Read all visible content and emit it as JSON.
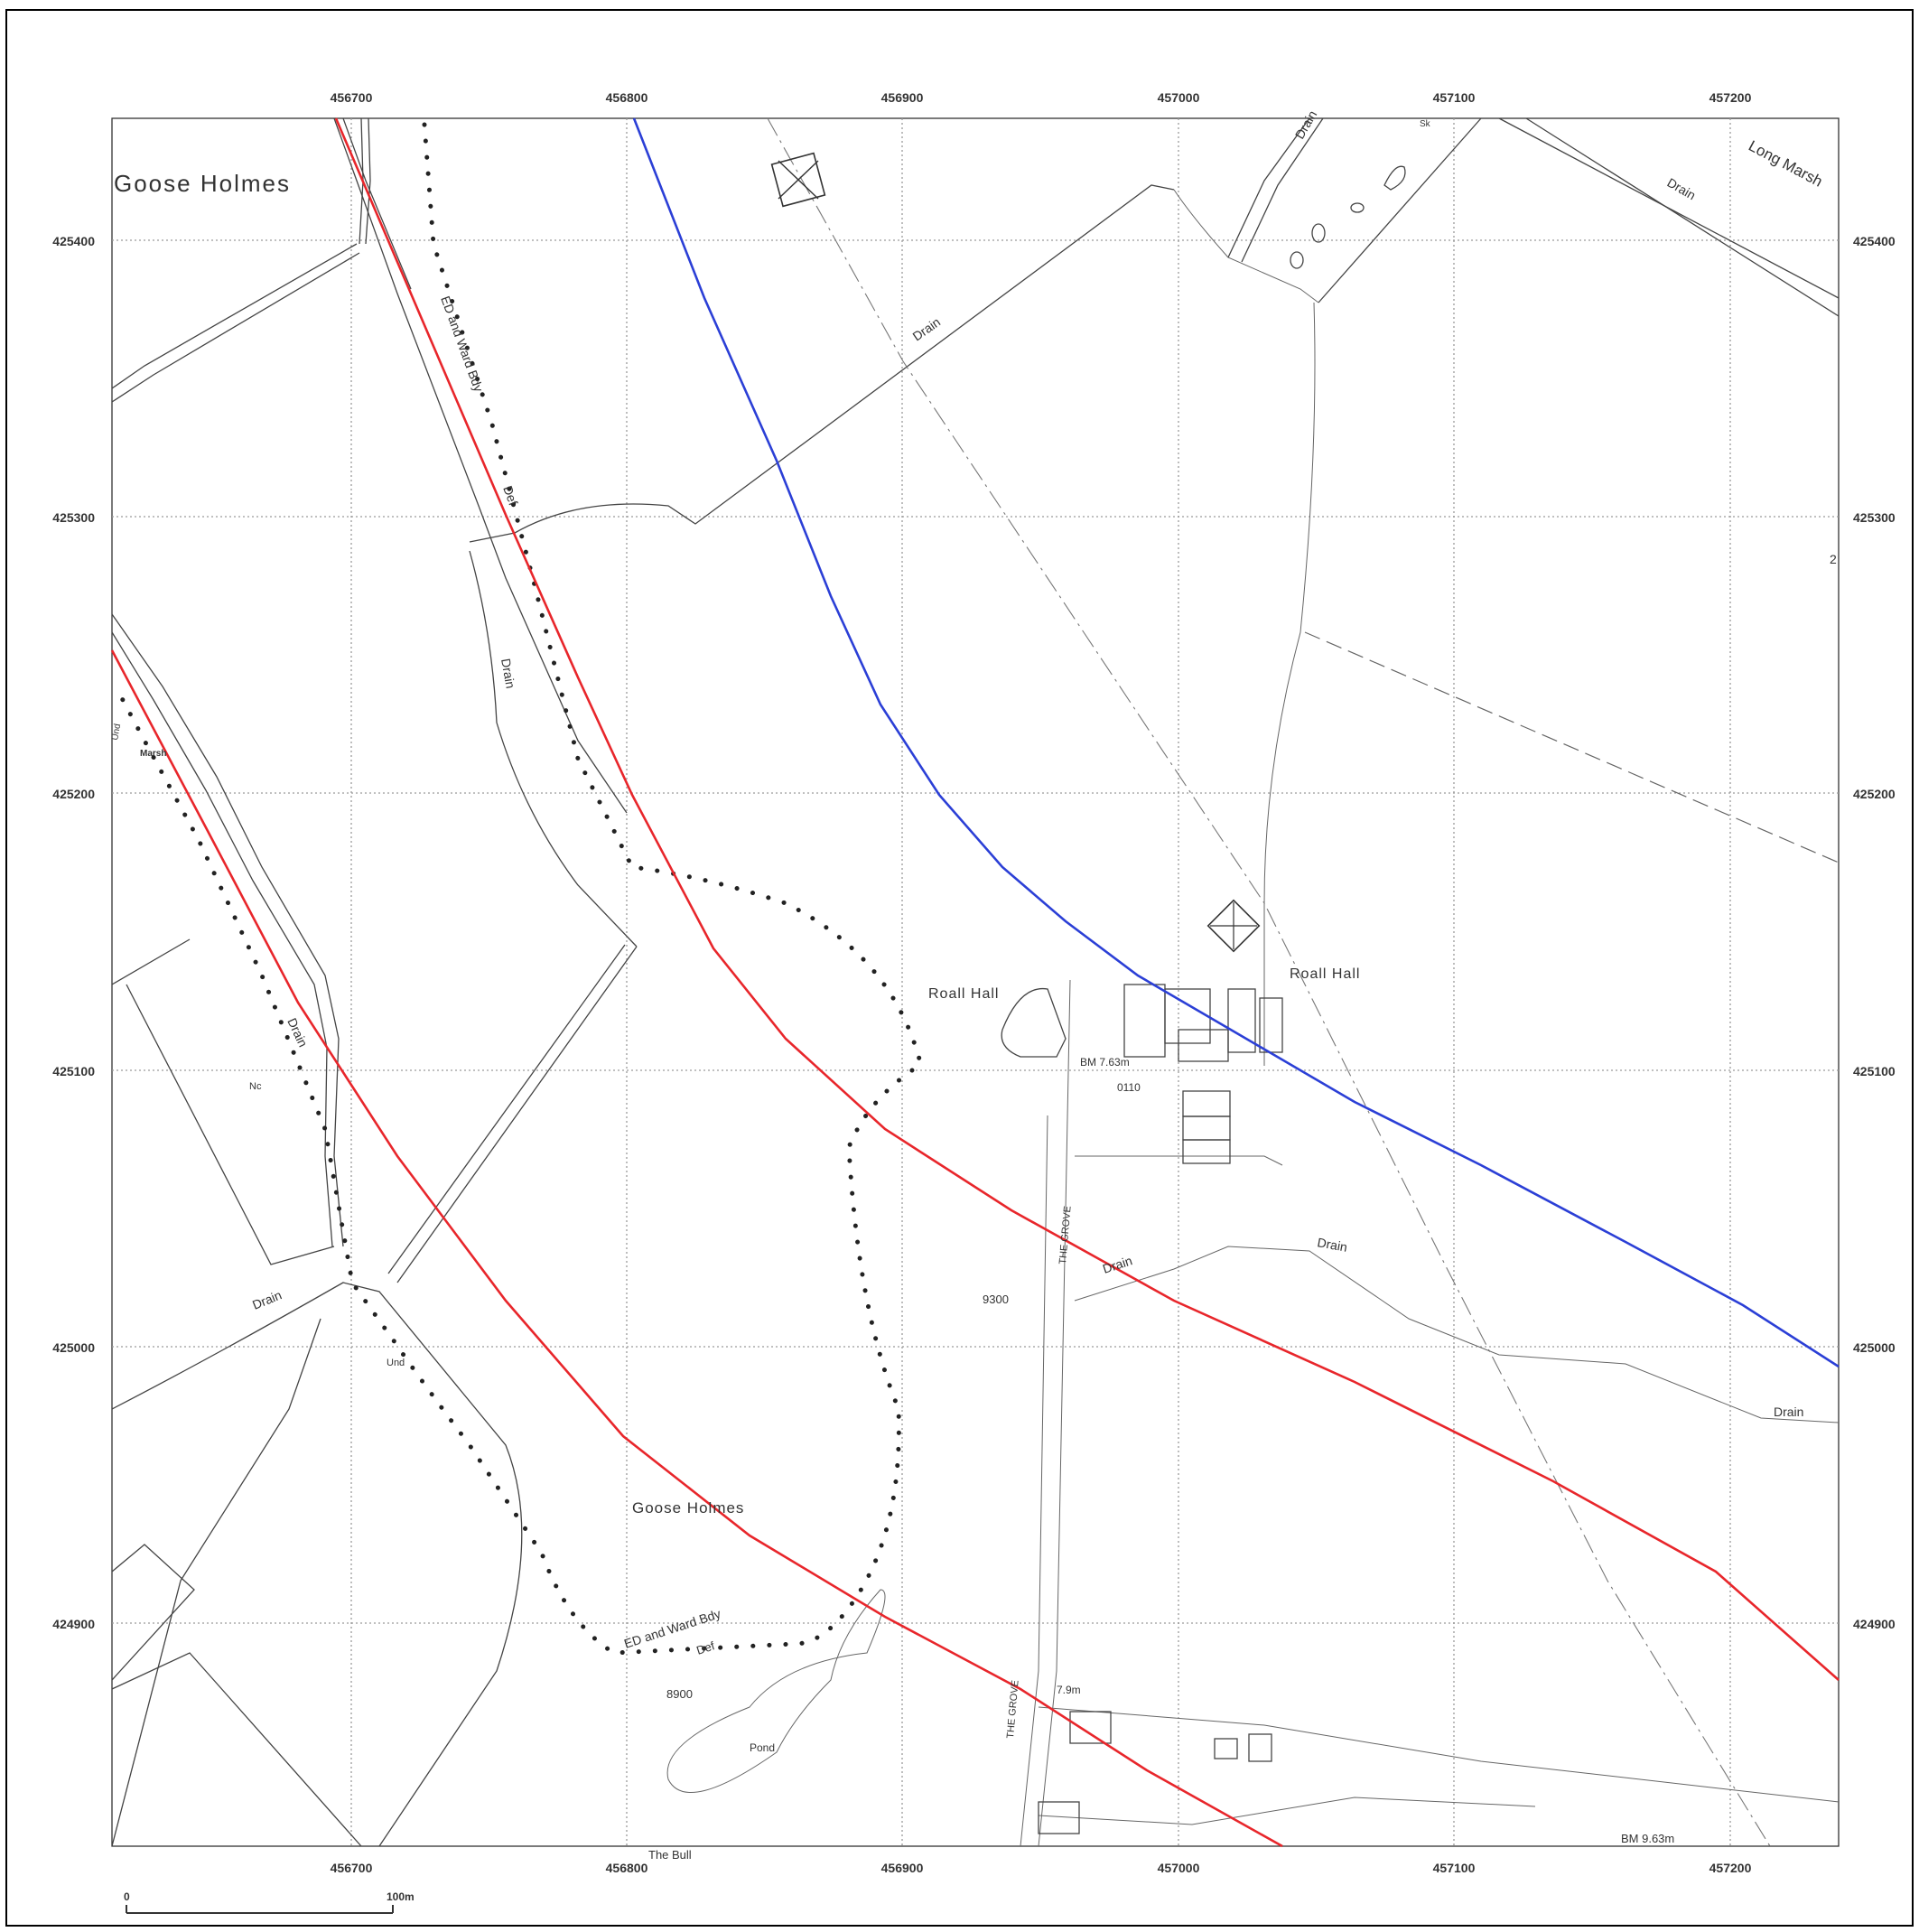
{
  "map": {
    "easting_ticks": [
      "456700",
      "456800",
      "456900",
      "457000",
      "457100",
      "457200"
    ],
    "northing_ticks": [
      "425400",
      "425300",
      "425200",
      "425100",
      "425000",
      "424900"
    ],
    "scale_bar": {
      "start_label": "0",
      "end_label": "100m"
    },
    "labels": {
      "goose_holmes_top": "Goose Holmes",
      "goose_holmes_bottom": "Goose Holmes",
      "long_marsh": "Long Marsh",
      "drain_1": "Drain",
      "drain_2": "Drain",
      "drain_3": "Drain",
      "drain_4": "Drain",
      "drain_5": "Drain",
      "drain_6": "Drain",
      "drain_7": "Drain",
      "drain_8": "Drain",
      "drain_9": "Drain",
      "ed_boundary_top": "ED and Ward Bdy",
      "def_top": "Def",
      "ed_boundary_bottom": "ED and Ward Bdy",
      "def_bottom": "Def",
      "roall_hall_left": "Roall Hall",
      "roall_hall_right": "Roall Hall",
      "bm_763": "BM 7.63m",
      "parcel_0110": "0110",
      "parcel_9300": "9300",
      "parcel_8900": "8900",
      "pond": "Pond",
      "the_grove_1": "THE GROVE",
      "the_grove_2": "THE GROVE",
      "spot_79": "7.9m",
      "bm_963": "BM 9.63m",
      "nc": "Nc",
      "marsh": "Marsh",
      "und_1": "Und",
      "und_2": "Und",
      "sk": "Sk",
      "two": "2",
      "the_bull": "The Bull"
    },
    "colors": {
      "red_route": "#e8262b",
      "blue_route": "#2b3fd6",
      "grid": "#9a9a9a"
    }
  }
}
